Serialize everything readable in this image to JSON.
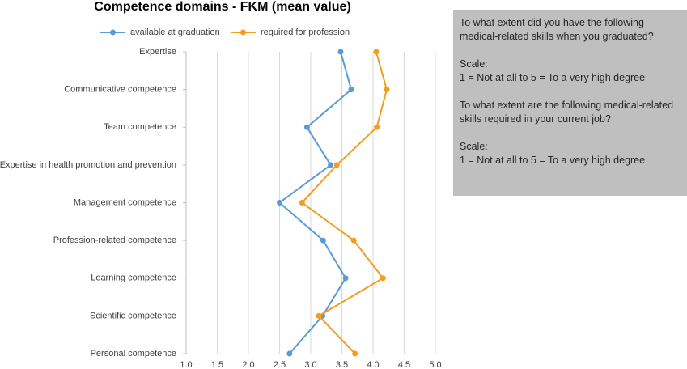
{
  "chart_data": {
    "type": "line",
    "orientation": "horizontal",
    "title": "Competence domains - FKM (mean value)",
    "categories": [
      "Expertise",
      "Communicative competence",
      "Team competence",
      "Expertise in health promotion and prevention",
      "Management competence",
      "Profession-related competence",
      "Learning competence",
      "Scientific competence",
      "Personal competence"
    ],
    "series": [
      {
        "name": "available at graduation",
        "color": "#5b9bd5",
        "values": [
          3.48,
          3.65,
          2.94,
          3.32,
          2.5,
          3.2,
          3.56,
          3.19,
          2.66
        ]
      },
      {
        "name": "required for profession",
        "color": "#f39c1f",
        "values": [
          4.05,
          4.22,
          4.06,
          3.42,
          2.86,
          3.69,
          4.16,
          3.13,
          3.71
        ]
      }
    ],
    "xlim": [
      1,
      5
    ],
    "xticks": [
      {
        "value": 1,
        "label": "1.0"
      },
      1.5,
      {
        "value": 2,
        "label": "2.0"
      },
      2.5,
      {
        "value": 3,
        "label": "3.0"
      },
      3.5,
      {
        "value": 4,
        "label": "4.0"
      },
      4.5,
      {
        "value": 5,
        "label": "5.0"
      }
    ],
    "grid": true,
    "legend": "top",
    "annotations": [
      "To what extent did you have the following medical-related skills when you graduated?",
      "Scale:",
      "1 = Not at all to 5 = To a very high degree",
      "To what extent are the following medical-related skills required in your current job?",
      "Scale:",
      "1 = Not at all to 5 = To a very high degree"
    ]
  }
}
